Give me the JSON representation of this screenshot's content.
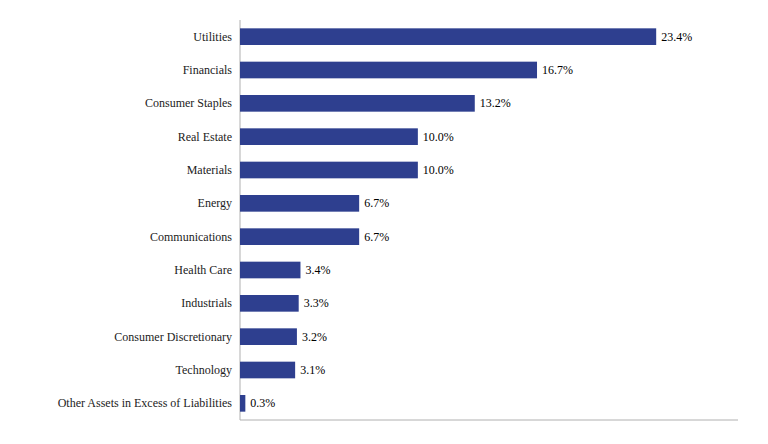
{
  "chart_data": {
    "type": "bar",
    "orientation": "horizontal",
    "categories": [
      "Other Assets in Excess of Liabilities",
      "Technology",
      "Consumer Discretionary",
      "Industrials",
      "Health Care",
      "Communications",
      "Energy",
      "Materials",
      "Real Estate",
      "Consumer Staples",
      "Financials",
      "Utilities"
    ],
    "values": [
      0.3,
      3.1,
      3.2,
      3.3,
      3.4,
      6.7,
      6.7,
      10.0,
      10.0,
      13.2,
      16.7,
      23.4
    ],
    "value_labels": [
      "0.3%",
      "3.1%",
      "3.2%",
      "3.3%",
      "3.4%",
      "6.7%",
      "6.7%",
      "10.0%",
      "10.0%",
      "13.2%",
      "16.7%",
      "23.4%"
    ],
    "data_labels": true,
    "color": "#2e3f8f",
    "xlim": [
      0,
      28
    ],
    "tick_labels": "y",
    "grid": false
  }
}
